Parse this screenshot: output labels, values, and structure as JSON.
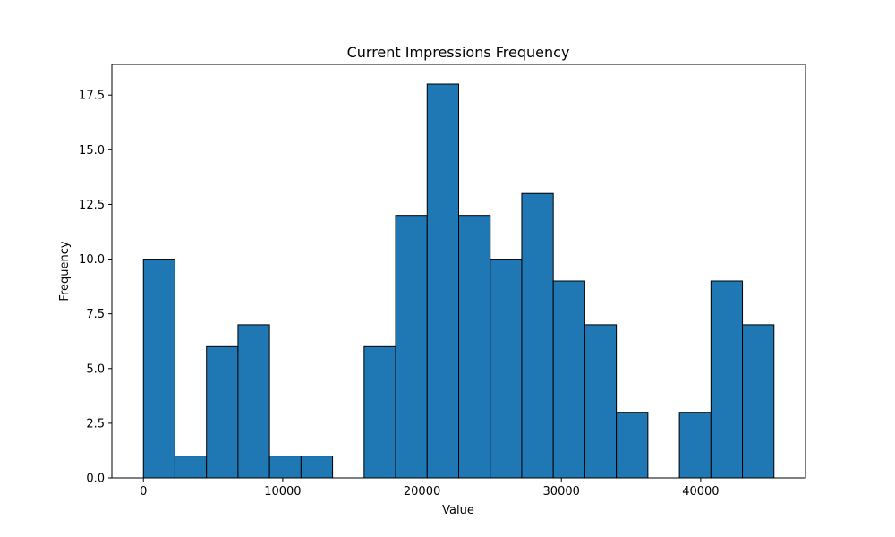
{
  "chart_data": {
    "type": "bar",
    "title": "Current Impressions Frequency",
    "xlabel": "Value",
    "ylabel": "Frequency",
    "bin_edges": [
      0,
      2263,
      4526,
      6789,
      9052,
      11315,
      13578,
      15841,
      18104,
      20367,
      22630,
      24893,
      27156,
      29419,
      31682,
      33945,
      36208,
      38471,
      40734,
      42997,
      45260
    ],
    "values": [
      10,
      1,
      6,
      7,
      1,
      1,
      0,
      6,
      12,
      18,
      12,
      10,
      13,
      9,
      7,
      3,
      0,
      3,
      9,
      7
    ],
    "xlim": [
      -2263,
      47523
    ],
    "ylim": [
      0,
      18.9
    ],
    "xticks": [
      0,
      10000,
      20000,
      30000,
      40000
    ],
    "yticks": [
      0.0,
      2.5,
      5.0,
      7.5,
      10.0,
      12.5,
      15.0,
      17.5
    ],
    "xtick_labels": [
      "0",
      "10000",
      "20000",
      "30000",
      "40000"
    ],
    "ytick_labels": [
      "0.0",
      "2.5",
      "5.0",
      "7.5",
      "10.0",
      "12.5",
      "15.0",
      "17.5"
    ],
    "bar_color": "#1f77b4",
    "edge_color": "#000000",
    "grid": false,
    "legend": false
  }
}
